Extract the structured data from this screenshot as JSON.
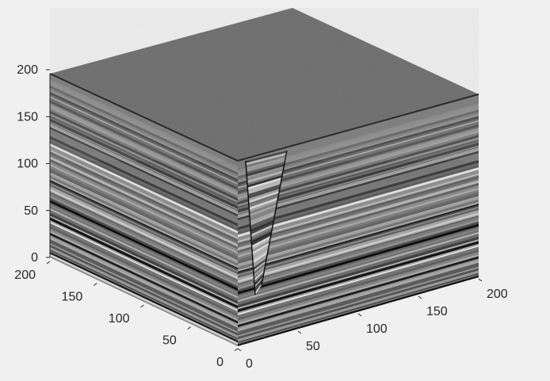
{
  "chart_data": {
    "type": "volume-slice",
    "description_free": true,
    "colormap": "gray",
    "background_color": "#f0f0f0",
    "axes_color": "#262626",
    "x_axis": {
      "range": [
        0,
        200
      ],
      "ticks": [
        "0",
        "50",
        "100",
        "150",
        "200"
      ]
    },
    "y_axis": {
      "range": [
        0,
        200
      ],
      "ticks": [
        "0",
        "50",
        "100",
        "150",
        "200"
      ]
    },
    "z_axis": {
      "range": [
        0,
        200
      ],
      "ticks": [
        "0",
        "50",
        "100",
        "150",
        "200"
      ]
    },
    "faces": [
      "top",
      "left",
      "right"
    ],
    "fault": {
      "present": true
    }
  }
}
